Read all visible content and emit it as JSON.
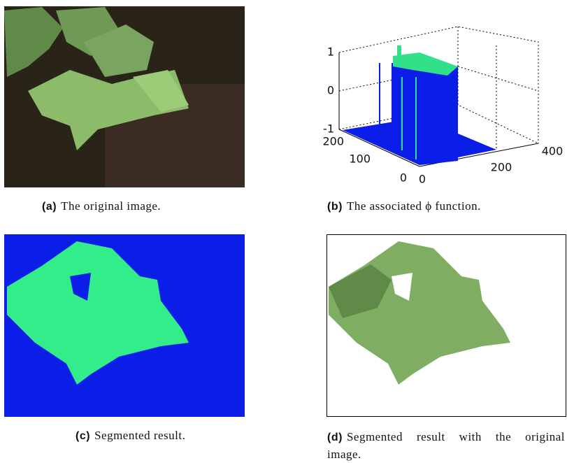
{
  "figures": [
    {
      "label": "(a)",
      "caption": "The original image."
    },
    {
      "label": "(b)",
      "caption": "The associated ϕ function."
    },
    {
      "label": "(c)",
      "caption": "Segmented result."
    },
    {
      "label": "(d)",
      "caption": "Segmented result with the original image."
    }
  ],
  "plot": {
    "z_ticks": [
      1,
      0,
      -1
    ],
    "y_ticks": [
      200,
      100,
      0
    ],
    "x_ticks": [
      0,
      200,
      400
    ]
  }
}
